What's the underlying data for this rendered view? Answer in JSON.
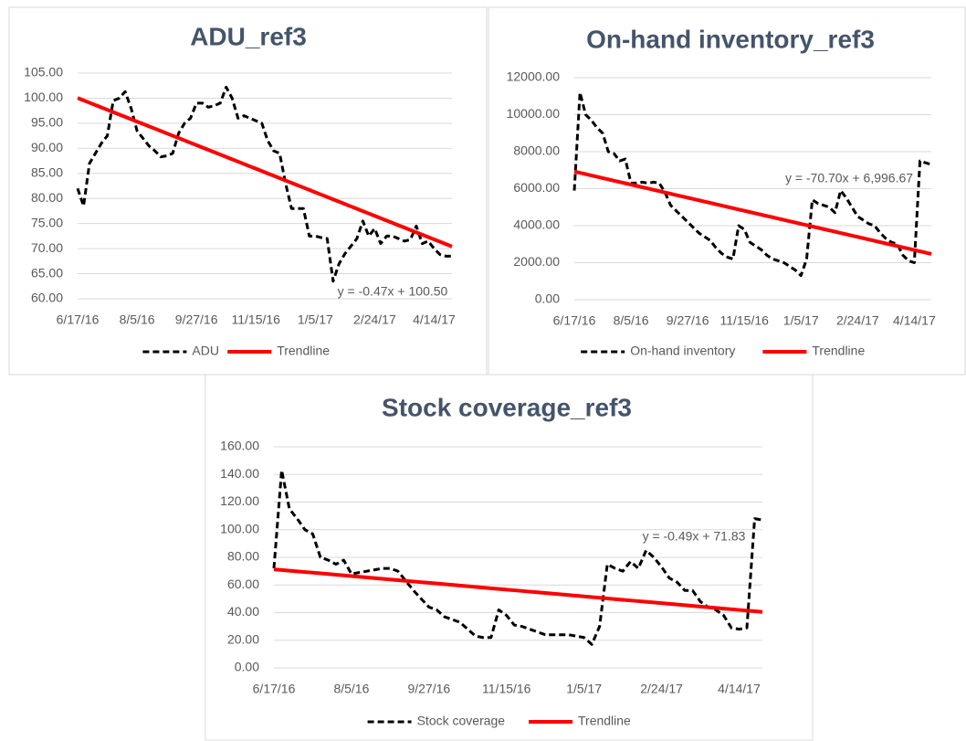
{
  "chart_data": [
    {
      "type": "line",
      "title": "ADU_ref3",
      "categories": [
        "6/17/16",
        null,
        null,
        null,
        null,
        null,
        null,
        null,
        null,
        null,
        "8/5/16",
        null,
        null,
        null,
        null,
        null,
        null,
        null,
        null,
        null,
        "9/27/16",
        null,
        null,
        null,
        null,
        null,
        null,
        null,
        null,
        null,
        "11/15/16",
        null,
        null,
        null,
        null,
        null,
        null,
        null,
        null,
        null,
        "1/5/17",
        null,
        null,
        null,
        null,
        null,
        null,
        null,
        null,
        null,
        "2/24/17",
        null,
        null,
        null,
        null,
        null,
        null,
        null,
        null,
        null,
        "4/14/17",
        null,
        null,
        null
      ],
      "series": [
        {
          "name": "ADU",
          "color": "#000000",
          "line_style": "dashed",
          "values": [
            82,
            78.5,
            87,
            89,
            91,
            92.5,
            99.5,
            100,
            101.3,
            98,
            93.5,
            92,
            90.5,
            89.5,
            88.3,
            88.5,
            89,
            93,
            95,
            96,
            99,
            99,
            98.2,
            98.5,
            99,
            102.2,
            100,
            96,
            96.5,
            96,
            95.5,
            95,
            91.5,
            89.5,
            89,
            83,
            78,
            78,
            78,
            72.5,
            72.5,
            72.2,
            72,
            63.5,
            67,
            69,
            70.5,
            72,
            75.5,
            72.5,
            74,
            71,
            72.5,
            72.5,
            72,
            71.5,
            71.8,
            74.5,
            71,
            71.5,
            70,
            68.8,
            68.5,
            68.5
          ]
        },
        {
          "name": "Trendline",
          "color": "#ff0000",
          "line_style": "solid",
          "values": [
            100.03,
            99.56,
            99.09,
            98.62,
            98.15,
            97.68,
            97.21,
            96.74,
            96.27,
            95.8,
            95.33,
            94.86,
            94.39,
            93.92,
            93.45,
            92.98,
            92.51,
            92.04,
            91.57,
            91.1,
            90.63,
            90.16,
            89.69,
            89.22,
            88.75,
            88.28,
            87.81,
            87.34,
            86.87,
            86.4,
            85.93,
            85.46,
            84.99,
            84.52,
            84.05,
            83.58,
            83.11,
            82.64,
            82.17,
            81.7,
            81.23,
            80.76,
            80.29,
            79.82,
            79.35,
            78.88,
            78.41,
            77.94,
            77.47,
            77.0,
            76.53,
            76.06,
            75.59,
            75.12,
            74.65,
            74.18,
            73.71,
            73.24,
            72.77,
            72.3,
            71.83,
            71.36,
            70.89,
            70.42
          ]
        }
      ],
      "annotation": "y = -0.47x + 100.50",
      "ylim": [
        60,
        105
      ],
      "yticks": [
        {
          "value": 60,
          "label": "60.00"
        },
        {
          "value": 65,
          "label": "65.00"
        },
        {
          "value": 70,
          "label": "70.00"
        },
        {
          "value": 75,
          "label": "75.00"
        },
        {
          "value": 80,
          "label": "80.00"
        },
        {
          "value": 85,
          "label": "85.00"
        },
        {
          "value": 90,
          "label": "90.00"
        },
        {
          "value": 95,
          "label": "95.00"
        },
        {
          "value": 100,
          "label": "100.00"
        },
        {
          "value": 105,
          "label": "105.00"
        }
      ],
      "grid": true,
      "legend": "bottom"
    },
    {
      "type": "line",
      "title": "On-hand inventory_ref3",
      "categories": [
        "6/17/16",
        null,
        null,
        null,
        null,
        null,
        null,
        null,
        null,
        null,
        "8/5/16",
        null,
        null,
        null,
        null,
        null,
        null,
        null,
        null,
        null,
        "9/27/16",
        null,
        null,
        null,
        null,
        null,
        null,
        null,
        null,
        null,
        "11/15/16",
        null,
        null,
        null,
        null,
        null,
        null,
        null,
        null,
        null,
        "1/5/17",
        null,
        null,
        null,
        null,
        null,
        null,
        null,
        null,
        null,
        "2/24/17",
        null,
        null,
        null,
        null,
        null,
        null,
        null,
        null,
        null,
        "4/14/17",
        null,
        null,
        null
      ],
      "series": [
        {
          "name": "On-hand inventory",
          "color": "#000000",
          "line_style": "dashed",
          "values": [
            5900,
            11200,
            10000,
            9700,
            9300,
            9000,
            8000,
            7900,
            7500,
            7600,
            6300,
            6300,
            6350,
            6300,
            6350,
            6300,
            5800,
            5100,
            4800,
            4500,
            4200,
            3900,
            3600,
            3400,
            3200,
            2800,
            2500,
            2300,
            2200,
            4000,
            3800,
            3100,
            2900,
            2700,
            2400,
            2200,
            2100,
            2000,
            1800,
            1600,
            1300,
            2200,
            5400,
            5200,
            5100,
            5000,
            4700,
            5900,
            5500,
            5000,
            4500,
            4300,
            4100,
            4000,
            3600,
            3300,
            3100,
            3000,
            2400,
            2100,
            2000,
            7500,
            7400,
            7300
          ]
        },
        {
          "name": "Trendline",
          "color": "#ff0000",
          "line_style": "solid",
          "values": [
            6925.97,
            6855.27,
            6784.57,
            6713.87,
            6643.17,
            6572.47,
            6501.77,
            6431.07,
            6360.37,
            6289.67,
            6218.97,
            6148.27,
            6077.57,
            6006.87,
            5936.17,
            5865.47,
            5794.77,
            5724.07,
            5653.37,
            5582.67,
            5511.97,
            5441.27,
            5370.57,
            5299.87,
            5229.17,
            5158.47,
            5087.77,
            5017.07,
            4946.37,
            4875.67,
            4804.97,
            4734.27,
            4663.57,
            4592.87,
            4522.17,
            4451.47,
            4380.77,
            4310.07,
            4239.37,
            4168.67,
            4097.97,
            4027.27,
            3956.57,
            3885.87,
            3815.17,
            3744.47,
            3673.77,
            3603.07,
            3532.37,
            3461.67,
            3390.97,
            3320.27,
            3249.57,
            3178.87,
            3108.17,
            3037.47,
            2966.77,
            2896.07,
            2825.37,
            2754.67,
            2683.97,
            2613.27,
            2542.57,
            2471.87
          ]
        }
      ],
      "annotation": "y = -70.70x + 6,996.67",
      "ylim": [
        0,
        12000
      ],
      "yticks": [
        {
          "value": 0,
          "label": "0.00"
        },
        {
          "value": 2000,
          "label": "2000.00"
        },
        {
          "value": 4000,
          "label": "4000.00"
        },
        {
          "value": 6000,
          "label": "6000.00"
        },
        {
          "value": 8000,
          "label": "8000.00"
        },
        {
          "value": 10000,
          "label": "10000.00"
        },
        {
          "value": 12000,
          "label": "12000.00"
        }
      ],
      "grid": true,
      "legend": "bottom"
    },
    {
      "type": "line",
      "title": "Stock coverage_ref3",
      "categories": [
        "6/17/16",
        null,
        null,
        null,
        null,
        null,
        null,
        null,
        null,
        null,
        "8/5/16",
        null,
        null,
        null,
        null,
        null,
        null,
        null,
        null,
        null,
        "9/27/16",
        null,
        null,
        null,
        null,
        null,
        null,
        null,
        null,
        null,
        "11/15/16",
        null,
        null,
        null,
        null,
        null,
        null,
        null,
        null,
        null,
        "1/5/17",
        null,
        null,
        null,
        null,
        null,
        null,
        null,
        null,
        null,
        "2/24/17",
        null,
        null,
        null,
        null,
        null,
        null,
        null,
        null,
        null,
        "4/14/17",
        null,
        null,
        null
      ],
      "series": [
        {
          "name": "Stock coverage",
          "color": "#000000",
          "line_style": "dashed",
          "values": [
            72,
            143,
            115,
            108,
            100,
            97,
            80,
            78,
            75,
            78,
            68,
            69,
            70,
            71,
            72,
            72,
            70,
            63,
            56,
            50,
            44,
            42,
            37,
            35,
            33,
            28,
            23,
            22,
            22,
            42,
            38,
            31,
            30,
            28,
            26,
            24,
            24,
            24,
            24,
            23,
            22,
            17,
            30,
            75,
            72,
            70,
            77,
            72,
            85,
            80,
            73,
            65,
            62,
            56,
            56,
            48,
            44,
            42,
            38,
            29,
            28,
            29,
            108,
            107
          ]
        },
        {
          "name": "Trendline",
          "color": "#ff0000",
          "line_style": "solid",
          "values": [
            71.34,
            70.85,
            70.36,
            69.87,
            69.38,
            68.89,
            68.4,
            67.91,
            67.42,
            66.93,
            66.44,
            65.95,
            65.46,
            64.97,
            64.48,
            63.99,
            63.5,
            63.01,
            62.52,
            62.03,
            61.54,
            61.05,
            60.56,
            60.07,
            59.58,
            59.09,
            58.6,
            58.11,
            57.62,
            57.13,
            56.64,
            56.15,
            55.66,
            55.17,
            54.68,
            54.19,
            53.7,
            53.21,
            52.72,
            52.23,
            51.74,
            51.25,
            50.76,
            50.27,
            49.78,
            49.29,
            48.8,
            48.31,
            47.82,
            47.33,
            46.84,
            46.35,
            45.86,
            45.37,
            44.88,
            44.39,
            43.9,
            43.41,
            42.92,
            42.43,
            41.94,
            41.45,
            40.96,
            40.47
          ]
        }
      ],
      "annotation": "y = -0.49x + 71.83",
      "ylim": [
        0,
        160
      ],
      "yticks": [
        {
          "value": 0,
          "label": "0.00"
        },
        {
          "value": 20,
          "label": "20.00"
        },
        {
          "value": 40,
          "label": "40.00"
        },
        {
          "value": 60,
          "label": "60.00"
        },
        {
          "value": 80,
          "label": "80.00"
        },
        {
          "value": 100,
          "label": "100.00"
        },
        {
          "value": 120,
          "label": "120.00"
        },
        {
          "value": 140,
          "label": "140.00"
        },
        {
          "value": 160,
          "label": "160.00"
        }
      ],
      "grid": true,
      "legend": "bottom"
    }
  ]
}
